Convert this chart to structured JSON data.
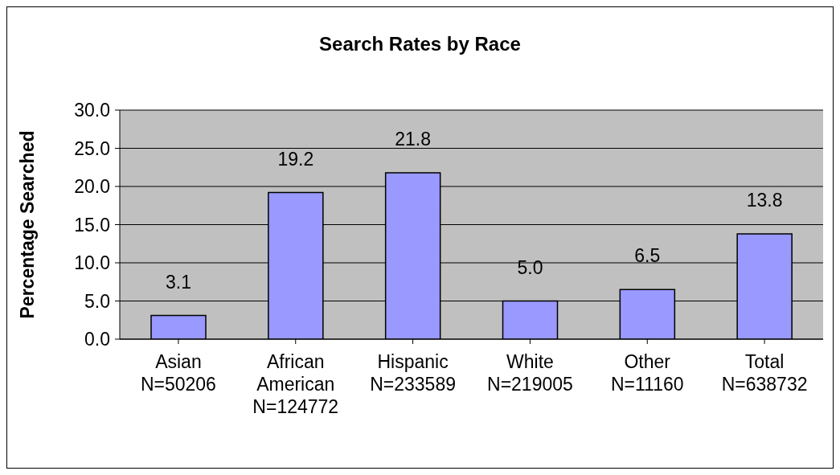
{
  "chart_data": {
    "type": "bar",
    "title": "Search Rates by Race",
    "ylabel": "Percentage Searched",
    "categories": [
      "Asian\nN=50206",
      "African\nAmerican\nN=124772",
      "Hispanic\nN=233589",
      "White\nN=219005",
      "Other\nN=11160",
      "Total\nN=638732"
    ],
    "values": [
      3.1,
      19.2,
      21.8,
      5.0,
      6.5,
      13.8
    ],
    "value_labels": [
      "3.1",
      "19.2",
      "21.8",
      "5.0",
      "6.5",
      "13.8"
    ],
    "color": "#9999ff",
    "ylim": [
      0,
      30
    ],
    "yticks": [
      {
        "value": 0,
        "label": "0.0"
      },
      {
        "value": 5,
        "label": "5.0"
      },
      {
        "value": 10,
        "label": "10.0"
      },
      {
        "value": 15,
        "label": "15.0"
      },
      {
        "value": 20,
        "label": "20.0"
      },
      {
        "value": 25,
        "label": "25.0"
      },
      {
        "value": 30,
        "label": "30.0"
      }
    ],
    "grid": "y"
  }
}
